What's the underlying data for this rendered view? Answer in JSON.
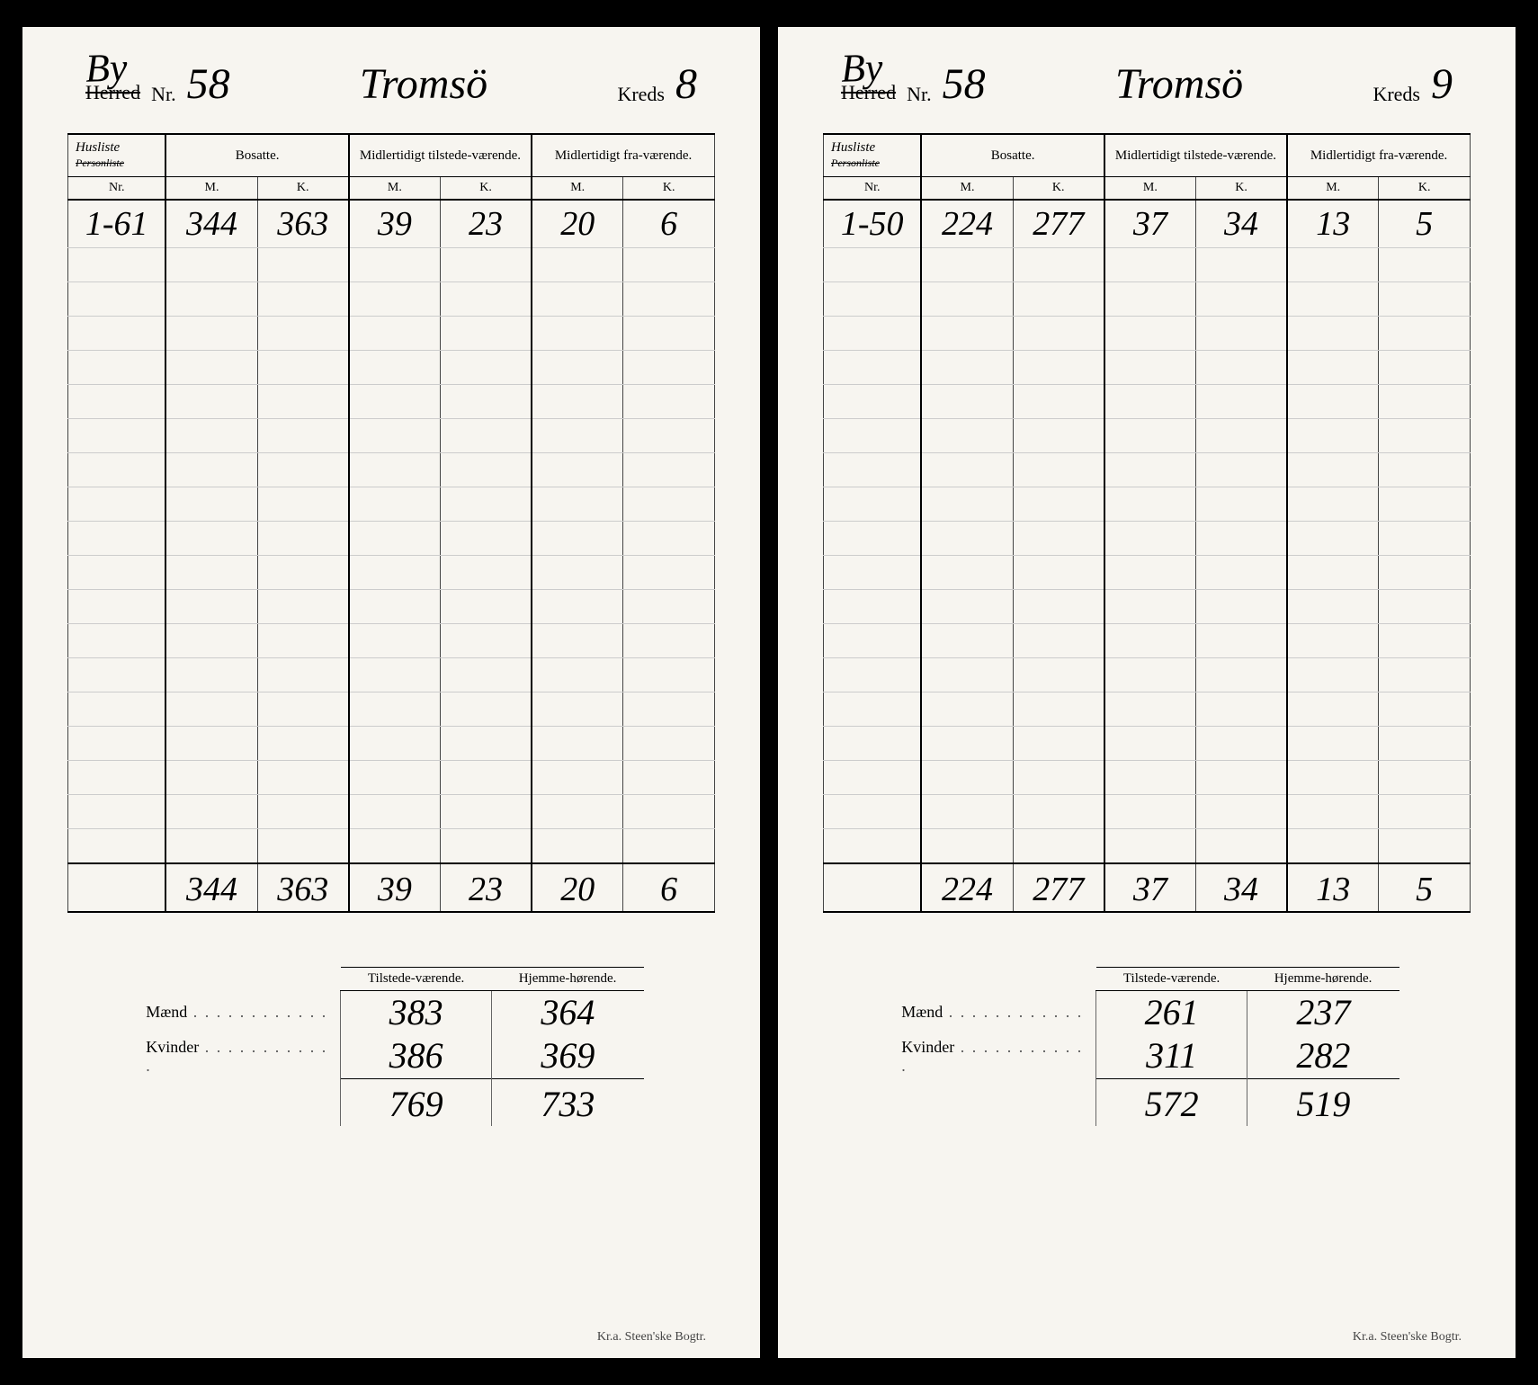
{
  "labels": {
    "herred": "Herred",
    "by": "By",
    "nr": "Nr.",
    "kreds": "Kreds",
    "husliste": "Husliste",
    "personliste": "Personliste",
    "nr_col": "Nr.",
    "bosatte": "Bosatte.",
    "midl_til": "Midlertidigt tilstede-værende.",
    "midl_fra": "Midlertidigt fra-værende.",
    "m": "M.",
    "k": "K.",
    "tilstede": "Tilstede-værende.",
    "hjemme": "Hjemme-hørende.",
    "maend": "Mænd",
    "kvinder": "Kvinder",
    "printer": "Kr.a.   Steen'ske Bogtr."
  },
  "cards": [
    {
      "nr": "58",
      "place": "Tromsö",
      "kreds": "8",
      "row": {
        "range": "1-61",
        "bm": "344",
        "bk": "363",
        "tm": "39",
        "tk": "23",
        "fm": "20",
        "fk": "6"
      },
      "totals": {
        "bm": "344",
        "bk": "363",
        "tm": "39",
        "tk": "23",
        "fm": "20",
        "fk": "6"
      },
      "summary": {
        "maend_til": "383",
        "maend_hjem": "364",
        "kvinder_til": "386",
        "kvinder_hjem": "369",
        "sum_til": "769",
        "sum_hjem": "733"
      }
    },
    {
      "nr": "58",
      "place": "Tromsö",
      "kreds": "9",
      "row": {
        "range": "1-50",
        "bm": "224",
        "bk": "277",
        "tm": "37",
        "tk": "34",
        "fm": "13",
        "fk": "5"
      },
      "totals": {
        "bm": "224",
        "bk": "277",
        "tm": "37",
        "tk": "34",
        "fm": "13",
        "fk": "5"
      },
      "summary": {
        "maend_til": "261",
        "maend_hjem": "237",
        "kvinder_til": "311",
        "kvinder_hjem": "282",
        "sum_til": "572",
        "sum_hjem": "519"
      }
    }
  ],
  "blank_rows": 18,
  "colors": {
    "page_bg": "#000000",
    "paper_bg": "#f7f5f0",
    "ink": "#1a1a1a",
    "rule": "#444444",
    "faint_rule": "#cccccc"
  }
}
